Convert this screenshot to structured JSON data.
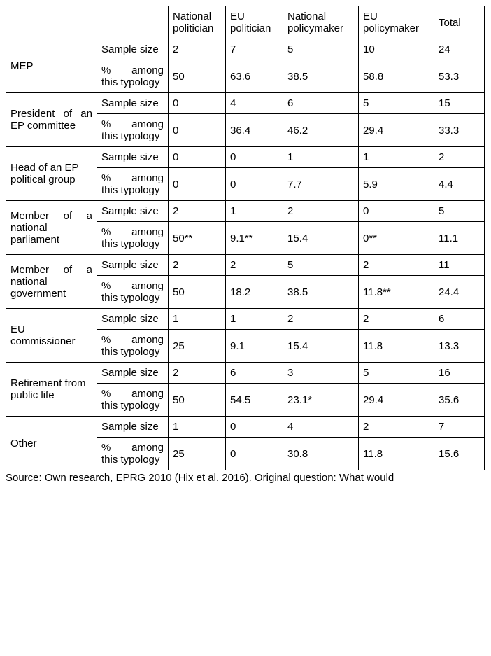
{
  "text_color": "#000000",
  "background": "#ffffff",
  "border_color": "#000000",
  "font_size_body": 15,
  "columns": {
    "row_label": "",
    "metric": "",
    "national_politician": "National politician",
    "eu_politician": "EU politician",
    "national_policymaker": "National policymaker",
    "eu_policymaker": "EU policymaker",
    "total": "Total"
  },
  "metrics": {
    "sample": "Sample size",
    "pct": "% among this typology"
  },
  "rows": [
    {
      "name": "MEP",
      "label": "MEP",
      "justify": false,
      "sample": [
        "2",
        "7",
        "5",
        "10",
        "24"
      ],
      "pct": [
        "50",
        "63.6",
        "38.5",
        "58.8",
        "53.3"
      ]
    },
    {
      "name": "president-ep-committee",
      "label": "President of an EP committee",
      "justify": true,
      "sample": [
        "0",
        "4",
        "6",
        "5",
        "15"
      ],
      "pct": [
        "0",
        "36.4",
        "46.2",
        "29.4",
        "33.3"
      ]
    },
    {
      "name": "head-ep-group",
      "label": "Head of an EP political group",
      "justify": false,
      "sample": [
        "0",
        "0",
        "1",
        "1",
        "2"
      ],
      "pct": [
        "0",
        "0",
        "7.7",
        "5.9",
        "4.4"
      ]
    },
    {
      "name": "member-national-parliament",
      "label": "Member of a national parliament",
      "justify": true,
      "sample": [
        "2",
        "1",
        "2",
        "0",
        "5"
      ],
      "pct": [
        "50**",
        "9.1**",
        "15.4",
        "0**",
        "11.1"
      ]
    },
    {
      "name": "member-national-government",
      "label": "Member of a national government",
      "justify": true,
      "sample": [
        "2",
        "2",
        "5",
        "2",
        "11"
      ],
      "pct": [
        "50",
        "18.2",
        "38.5",
        "11.8**",
        "24.4"
      ]
    },
    {
      "name": "eu-commissioner",
      "label": "EU commissioner",
      "justify": false,
      "sample": [
        "1",
        "1",
        "2",
        "2",
        "6"
      ],
      "pct": [
        "25",
        "9.1",
        "15.4",
        "11.8",
        "13.3"
      ]
    },
    {
      "name": "retirement",
      "label": "Retirement from public life",
      "justify": false,
      "sample": [
        "2",
        "6",
        "3",
        "5",
        "16"
      ],
      "pct": [
        "50",
        "54.5",
        "23.1*",
        "29.4",
        "35.6"
      ]
    },
    {
      "name": "other",
      "label": "Other",
      "justify": false,
      "sample": [
        "1",
        "0",
        "4",
        "2",
        "7"
      ],
      "pct": [
        "25",
        "0",
        "30.8",
        "11.8",
        "15.6"
      ]
    }
  ],
  "source": "Source: Own research, EPRG 2010 (Hix et al. 2016). Original question: What would"
}
